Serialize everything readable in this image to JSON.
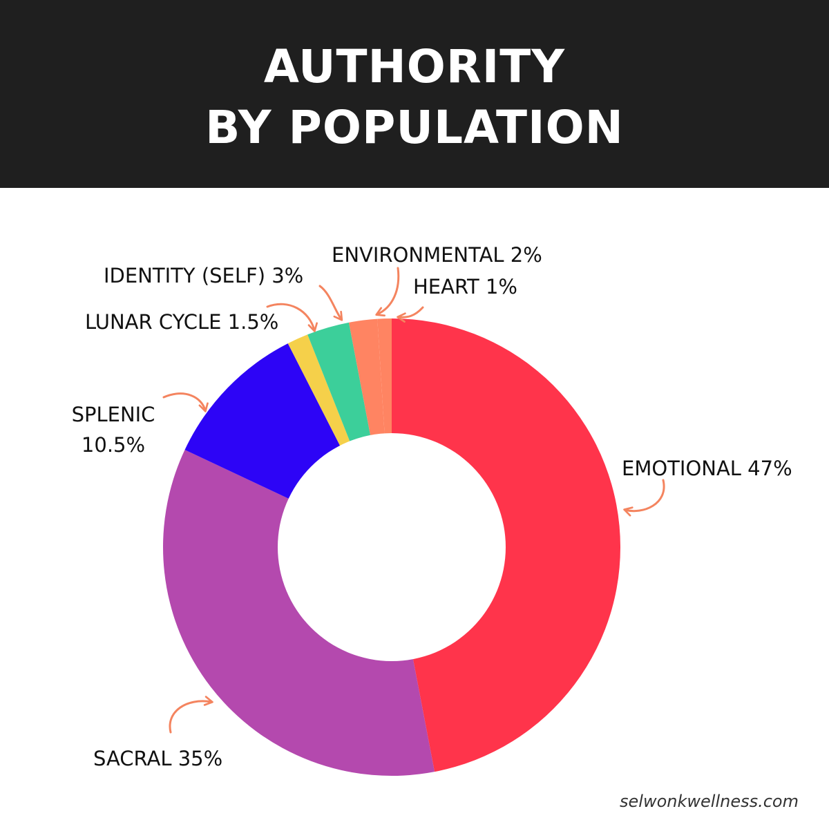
{
  "header": {
    "title_line1": "AUTHORITY",
    "title_line2": "BY POPULATION"
  },
  "footer": {
    "site": "selwonkwellness.com"
  },
  "chart_data": {
    "type": "pie",
    "variant": "donut",
    "title": "AUTHORITY BY POPULATION",
    "start": "top",
    "direction": "clockwise",
    "slices": [
      {
        "name": "EMOTIONAL",
        "value": 47,
        "label": "EMOTIONAL 47%",
        "color": "#ff344b"
      },
      {
        "name": "SACRAL",
        "value": 35,
        "label": "SACRAL 35%",
        "color": "#b449ae"
      },
      {
        "name": "SPLENIC",
        "value": 10.5,
        "label_line1": "SPLENIC",
        "label_line2": "10.5%",
        "color": "#2d04f6"
      },
      {
        "name": "LUNAR CYCLE",
        "value": 1.5,
        "label": "LUNAR CYCLE 1.5%",
        "color": "#f5d04a"
      },
      {
        "name": "IDENTITY (SELF)",
        "value": 3,
        "label": "IDENTITY (SELF) 3%",
        "color": "#3ccf9a"
      },
      {
        "name": "ENVIRONMENTAL",
        "value": 2,
        "label": "ENVIRONMENTAL 2%",
        "color": "#ff8462"
      },
      {
        "name": "HEART",
        "value": 1,
        "label": "HEART 1%",
        "color": "#ff8462"
      }
    ],
    "arrow_color": "#f4845f"
  }
}
